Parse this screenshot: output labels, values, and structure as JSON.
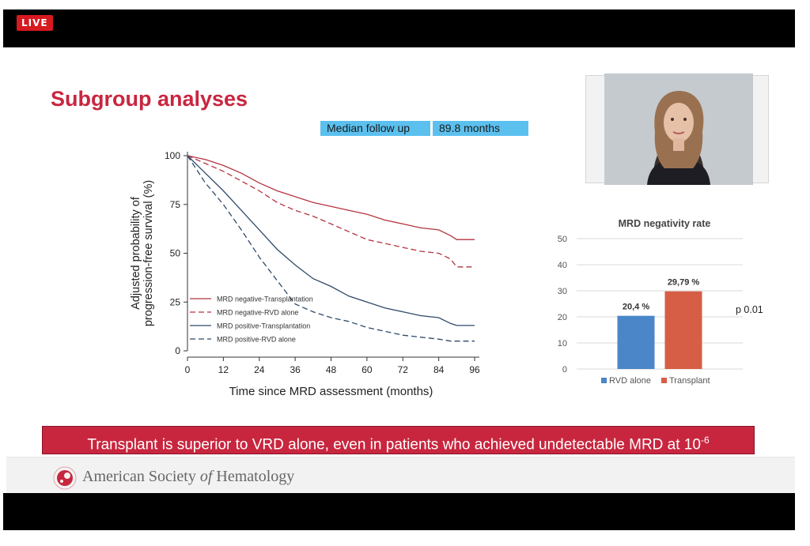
{
  "live_badge": "LIVE",
  "slide": {
    "title": "Subgroup analyses",
    "followup_label": "Median follow up",
    "followup_value": "89.8 months",
    "conclusion_prefix": "Transplant is superior to VRD alone, even in patients who achieved undetectable MRD at 10",
    "conclusion_exponent": "-6",
    "footer_org_prefix": "American Society ",
    "footer_org_of": "of",
    "footer_org_suffix": " Hematology"
  },
  "chart_data": [
    {
      "type": "line",
      "xlabel": "Time since MRD assessment (months)",
      "ylabel_line1": "Adjusted probability of",
      "ylabel_line2": "progression-free survival (%)",
      "xlim": [
        0,
        96
      ],
      "ylim": [
        0,
        100
      ],
      "xticks": [
        0,
        12,
        24,
        36,
        48,
        60,
        72,
        84,
        96
      ],
      "yticks": [
        0,
        25,
        50,
        75,
        100
      ],
      "legend_position": "bottom-left",
      "series": [
        {
          "name": "MRD negative-Transplantation",
          "color": "#b5343f",
          "dash": false,
          "x": [
            0,
            6,
            12,
            18,
            24,
            30,
            36,
            42,
            48,
            54,
            60,
            66,
            72,
            78,
            84,
            88,
            90,
            96
          ],
          "y": [
            100,
            98,
            95,
            91,
            86,
            82,
            79,
            76,
            74,
            72,
            70,
            67,
            65,
            63,
            62,
            59,
            57,
            57
          ]
        },
        {
          "name": "MRD negative-RVD alone",
          "color": "#b5343f",
          "dash": true,
          "x": [
            0,
            6,
            12,
            18,
            24,
            30,
            36,
            42,
            48,
            54,
            60,
            66,
            72,
            78,
            84,
            88,
            90,
            96
          ],
          "y": [
            100,
            96,
            92,
            87,
            82,
            76,
            72,
            69,
            65,
            61,
            57,
            55,
            53,
            51,
            50,
            47,
            43,
            43
          ]
        },
        {
          "name": "MRD positive-Transplantation",
          "color": "#2f4a68",
          "dash": false,
          "x": [
            0,
            6,
            12,
            18,
            24,
            30,
            36,
            42,
            48,
            54,
            60,
            66,
            72,
            78,
            84,
            88,
            90,
            96
          ],
          "y": [
            100,
            91,
            82,
            72,
            62,
            52,
            44,
            37,
            33,
            28,
            25,
            22,
            20,
            18,
            17,
            14,
            13,
            13
          ]
        },
        {
          "name": "MRD positive-RVD alone",
          "color": "#2f4a68",
          "dash": true,
          "x": [
            0,
            6,
            12,
            18,
            24,
            30,
            36,
            42,
            48,
            54,
            60,
            66,
            72,
            78,
            84,
            88,
            90,
            96
          ],
          "y": [
            100,
            86,
            75,
            62,
            48,
            36,
            24,
            20,
            17,
            15,
            12,
            10,
            8,
            7,
            6,
            5,
            5,
            5
          ]
        }
      ]
    },
    {
      "type": "bar",
      "title": "MRD negativity rate",
      "categories": [
        "RVD alone",
        "Transplant"
      ],
      "values": [
        20.4,
        29.79
      ],
      "value_labels": [
        "20,4 %",
        "29,79 %"
      ],
      "colors": [
        "#4a86c8",
        "#d65e46"
      ],
      "ylim": [
        0,
        50
      ],
      "yticks": [
        0,
        10,
        20,
        30,
        40,
        50
      ],
      "legend_position": "bottom",
      "annotation": "p 0.01"
    }
  ]
}
